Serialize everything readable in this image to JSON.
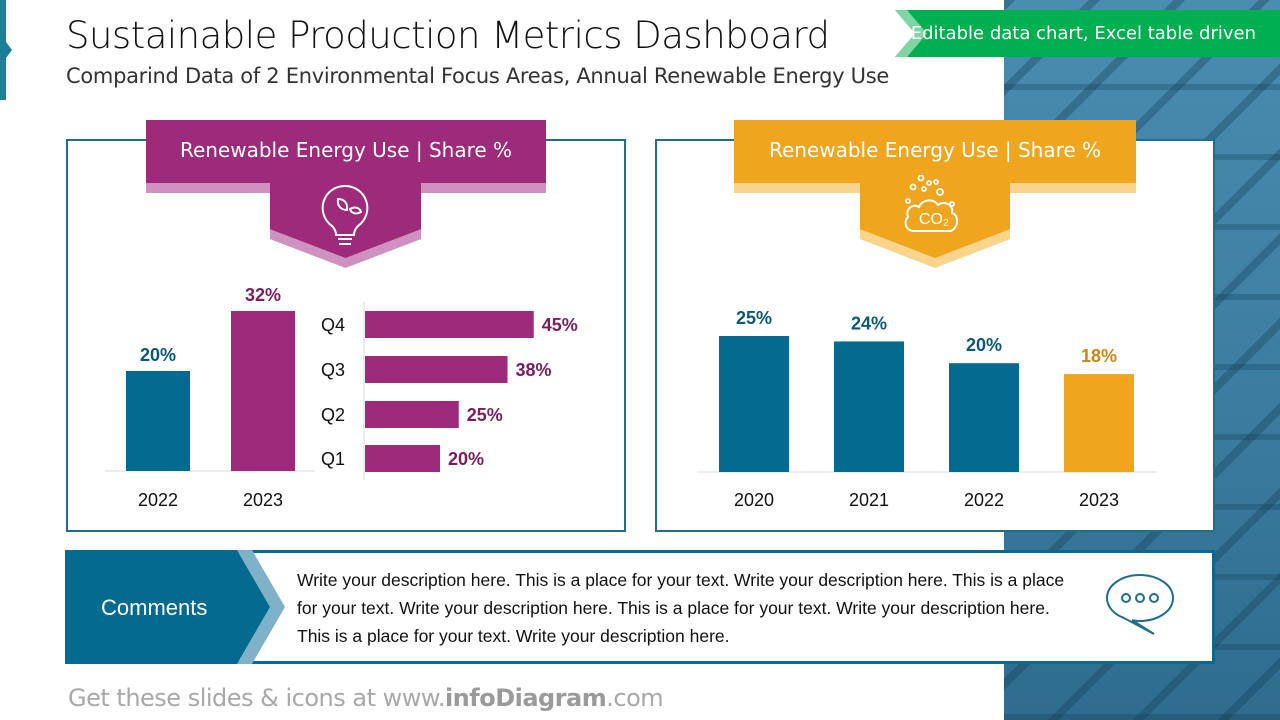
{
  "header": {
    "title": "Sustainable Production Metrics Dashboard",
    "subtitle": "Comparind Data of 2 Environmental Focus Areas, Annual Renewable Energy Use",
    "tag": "Editable data chart, Excel table driven"
  },
  "left_panel": {
    "banner": "Renewable Energy Use | Share %",
    "icon": "lightbulb-leaf-icon",
    "color": "#9e2a7b"
  },
  "right_panel": {
    "banner": "Renewable Energy Use | Share %",
    "icon": "co2-cloud-icon",
    "color": "#f0a51e"
  },
  "chart_data": [
    {
      "type": "bar",
      "categories": [
        "2022",
        "2023"
      ],
      "values": [
        20,
        32
      ],
      "labels": [
        "20%",
        "32%"
      ],
      "colors": [
        "#046a8f",
        "#9e2a7b"
      ]
    },
    {
      "type": "bar",
      "orientation": "horizontal",
      "categories": [
        "Q4",
        "Q3",
        "Q2",
        "Q1"
      ],
      "values": [
        45,
        38,
        25,
        20
      ],
      "labels": [
        "45%",
        "38%",
        "25%",
        "20%"
      ],
      "color": "#9e2a7b"
    },
    {
      "type": "bar",
      "categories": [
        "2020",
        "2021",
        "2022",
        "2023"
      ],
      "values": [
        25,
        24,
        20,
        18
      ],
      "labels": [
        "25%",
        "24%",
        "20%",
        "18%"
      ],
      "colors": [
        "#046a8f",
        "#046a8f",
        "#046a8f",
        "#f0a51e"
      ]
    }
  ],
  "comments": {
    "label": "Comments",
    "text": "Write your description here. This is a place for your text. Write your description here. This is a place for your text. Write your description here. This is a place for your text. Write your description here. This is a place for your text. Write your description here.",
    "icon": "speech-bubble-icon"
  },
  "footer": {
    "prefix": "Get these slides & icons at www.",
    "brand": "infoDiagram",
    "suffix": ".com"
  },
  "watermark": "© infoDiagram.com"
}
